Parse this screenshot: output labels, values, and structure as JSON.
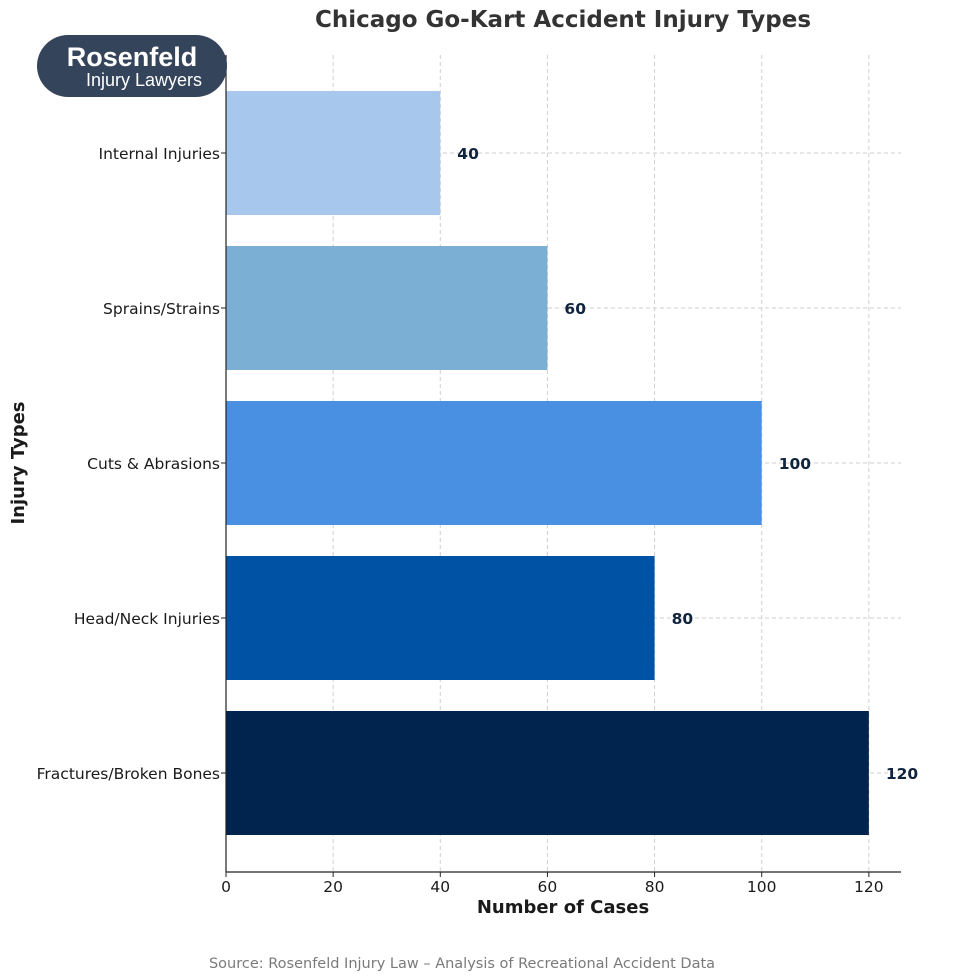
{
  "logo": {
    "main_text": "Rosenfeld",
    "sub_text": "Injury Lawyers",
    "background_color": "#34445b"
  },
  "source": {
    "text": "Source: Rosenfeld Injury Law – Analysis of Recreational Accident Data"
  },
  "chart_data": {
    "type": "bar",
    "orientation": "horizontal",
    "title": "Chicago Go-Kart Accident Injury Types",
    "xlabel": "Number of Cases",
    "ylabel": "Injury Types",
    "categories": [
      "Fractures/Broken Bones",
      "Head/Neck Injuries",
      "Cuts & Abrasions",
      "Sprains/Strains",
      "Internal Injuries"
    ],
    "values": [
      120,
      80,
      100,
      60,
      40
    ],
    "bar_colors": [
      "#00244d",
      "#0052a5",
      "#4a90e2",
      "#7bafd4",
      "#a7c7ed"
    ],
    "value_labels": [
      "120",
      "80",
      "100",
      "60",
      "40"
    ],
    "xlim": [
      0,
      126
    ],
    "xticks": [
      0,
      20,
      40,
      60,
      80,
      100,
      120
    ],
    "grid": true
  }
}
